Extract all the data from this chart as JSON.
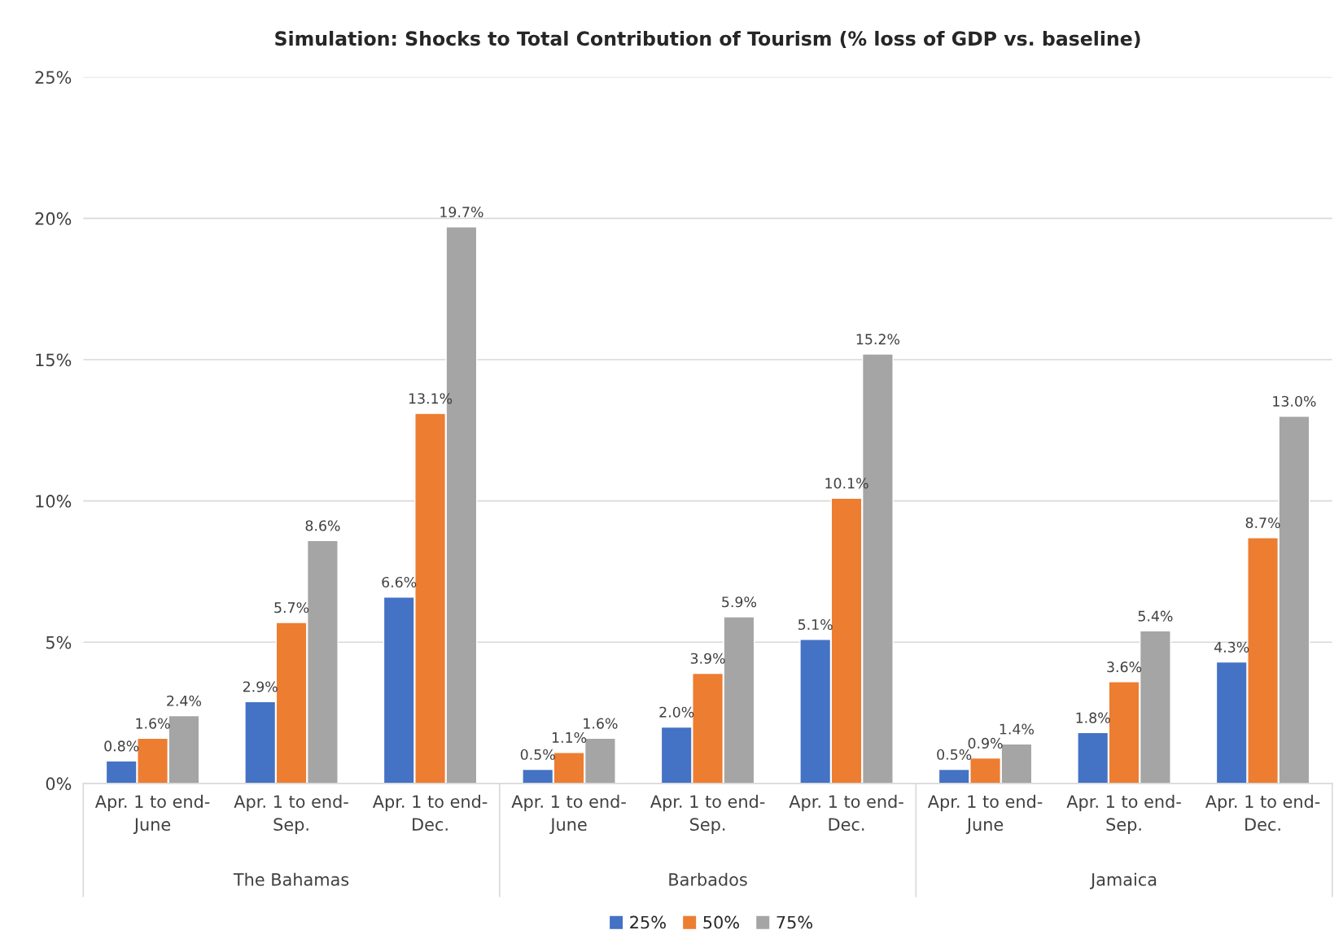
{
  "chart_data": {
    "type": "bar",
    "title": "Simulation: Shocks to Total Contribution of Tourism (% loss of GDP vs. baseline)",
    "categories": [
      "Apr. 1 to end-\nJune",
      "Apr. 1 to end-\nSep.",
      "Apr. 1 to end-\nDec.",
      "Apr. 1 to end-\nJune",
      "Apr. 1 to end-\nSep.",
      "Apr. 1 to end-\nDec.",
      "Apr. 1 to end-\nJune",
      "Apr. 1 to end-\nSep.",
      "Apr. 1 to end-\nDec."
    ],
    "annotations": [
      "The Bahamas",
      "Barbados",
      "Jamaica"
    ],
    "series": [
      {
        "name": "25%",
        "color": "#4472c4",
        "values": [
          0.8,
          2.9,
          6.6,
          0.5,
          2.0,
          5.1,
          0.5,
          1.8,
          4.3
        ],
        "value_labels": [
          "0.8%",
          "2.9%",
          "6.6%",
          "0.5%",
          "2.0%",
          "5.1%",
          "0.5%",
          "1.8%",
          "4.3%"
        ]
      },
      {
        "name": "50%",
        "color": "#ed7d31",
        "values": [
          1.6,
          5.7,
          13.1,
          1.1,
          3.9,
          10.1,
          0.9,
          3.6,
          8.7
        ],
        "value_labels": [
          "1.6%",
          "5.7%",
          "13.1%",
          "1.1%",
          "3.9%",
          "10.1%",
          "0.9%",
          "3.6%",
          "8.7%"
        ]
      },
      {
        "name": "75%",
        "color": "#a5a5a5",
        "values": [
          2.4,
          8.6,
          19.7,
          1.6,
          5.9,
          15.2,
          1.4,
          5.4,
          13.0
        ],
        "value_labels": [
          "2.4%",
          "8.6%",
          "19.7%",
          "1.6%",
          "5.9%",
          "15.2%",
          "1.4%",
          "5.4%",
          "13.0%"
        ]
      }
    ],
    "ylim": [
      0,
      25
    ],
    "yticks": [
      {
        "value": 0,
        "label": "0%"
      },
      {
        "value": 5,
        "label": "5%"
      },
      {
        "value": 10,
        "label": "10%"
      },
      {
        "value": 15,
        "label": "15%"
      },
      {
        "value": 20,
        "label": "20%"
      },
      {
        "value": 25,
        "label": "25%"
      }
    ],
    "grid": "y",
    "legend": "bottom"
  }
}
